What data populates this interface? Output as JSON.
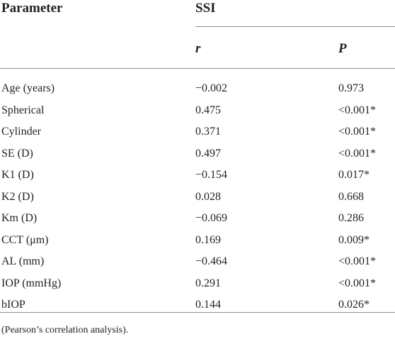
{
  "table": {
    "header": {
      "parameter": "Parameter",
      "group": "SSI",
      "col_r": "r",
      "col_p": "P"
    },
    "rows": [
      {
        "parameter": "Age (years)",
        "r": "−0.002",
        "p": "0.973"
      },
      {
        "parameter": "Spherical",
        "r": "0.475",
        "p": "<0.001*"
      },
      {
        "parameter": "Cylinder",
        "r": "0.371",
        "p": "<0.001*"
      },
      {
        "parameter": "SE (D)",
        "r": "0.497",
        "p": "<0.001*"
      },
      {
        "parameter": "K1 (D)",
        "r": "−0.154",
        "p": "0.017*"
      },
      {
        "parameter": "K2 (D)",
        "r": "0.028",
        "p": "0.668"
      },
      {
        "parameter": "Km (D)",
        "r": "−0.069",
        "p": "0.286"
      },
      {
        "parameter": "CCT (μm)",
        "r": "0.169",
        "p": "0.009*"
      },
      {
        "parameter": "AL (mm)",
        "r": "−0.464",
        "p": "<0.001*"
      },
      {
        "parameter": "IOP (mmHg)",
        "r": "0.291",
        "p": "<0.001*"
      },
      {
        "parameter": "bIOP",
        "r": "0.144",
        "p": "0.026*"
      }
    ],
    "footnote": "(Pearson’s correlation analysis)."
  }
}
